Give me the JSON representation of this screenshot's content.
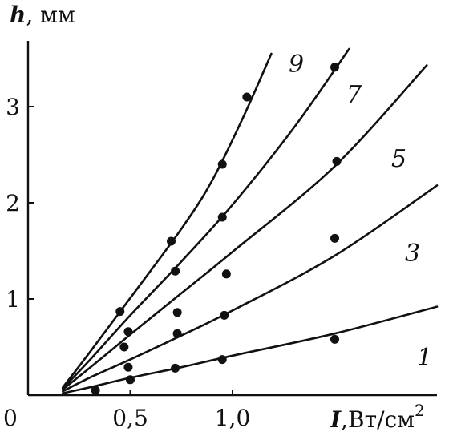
{
  "chart_data": {
    "type": "line",
    "title": "",
    "xlabel": {
      "var": "I",
      "unit": ",Вт/см",
      "sup": "2"
    },
    "ylabel": {
      "var": "h",
      "unit": ", мм"
    },
    "origin_label": "0",
    "xlim": [
      0,
      2.0
    ],
    "ylim": [
      0,
      3.6
    ],
    "x_ticks": [
      {
        "value": 0.5,
        "label": "0,5"
      },
      {
        "value": 1.0,
        "label": "1,0"
      }
    ],
    "y_ticks": [
      {
        "value": 1,
        "label": "1"
      },
      {
        "value": 2,
        "label": "2"
      },
      {
        "value": 3,
        "label": "3"
      }
    ],
    "grid": false,
    "legend": "none",
    "series": [
      {
        "label": "1",
        "curve": [
          [
            0.17,
            0.02
          ],
          [
            0.3,
            0.08
          ],
          [
            0.5,
            0.18
          ],
          [
            0.75,
            0.29
          ],
          [
            1.0,
            0.41
          ],
          [
            1.5,
            0.64
          ],
          [
            2.0,
            0.92
          ]
        ],
        "points": [
          [
            0.33,
            0.05
          ],
          [
            0.5,
            0.16
          ],
          [
            0.72,
            0.28
          ],
          [
            0.95,
            0.37
          ],
          [
            1.5,
            0.58
          ]
        ]
      },
      {
        "label": "3",
        "curve": [
          [
            0.17,
            0.04
          ],
          [
            0.3,
            0.18
          ],
          [
            0.5,
            0.37
          ],
          [
            0.75,
            0.62
          ],
          [
            1.0,
            0.88
          ],
          [
            1.5,
            1.45
          ],
          [
            2.0,
            2.18
          ]
        ],
        "points": [
          [
            0.49,
            0.29
          ],
          [
            0.73,
            0.64
          ],
          [
            0.96,
            0.83
          ],
          [
            1.5,
            1.63
          ]
        ]
      },
      {
        "label": "5",
        "curve": [
          [
            0.17,
            0.06
          ],
          [
            0.3,
            0.28
          ],
          [
            0.5,
            0.63
          ],
          [
            0.75,
            1.06
          ],
          [
            1.0,
            1.49
          ],
          [
            1.5,
            2.38
          ],
          [
            1.95,
            3.43
          ]
        ],
        "points": [
          [
            0.47,
            0.5
          ],
          [
            0.73,
            0.86
          ],
          [
            0.97,
            1.26
          ],
          [
            1.51,
            2.43
          ]
        ]
      },
      {
        "label": "7",
        "curve": [
          [
            0.17,
            0.07
          ],
          [
            0.3,
            0.36
          ],
          [
            0.5,
            0.83
          ],
          [
            0.75,
            1.39
          ],
          [
            1.0,
            1.98
          ],
          [
            1.3,
            2.78
          ],
          [
            1.57,
            3.6
          ]
        ],
        "points": [
          [
            0.49,
            0.66
          ],
          [
            0.72,
            1.29
          ],
          [
            0.95,
            1.85
          ],
          [
            1.5,
            3.41
          ]
        ]
      },
      {
        "label": "9",
        "curve": [
          [
            0.17,
            0.08
          ],
          [
            0.3,
            0.44
          ],
          [
            0.5,
            1.01
          ],
          [
            0.75,
            1.73
          ],
          [
            0.9,
            2.23
          ],
          [
            1.05,
            2.88
          ],
          [
            1.19,
            3.55
          ]
        ],
        "points": [
          [
            0.45,
            0.87
          ],
          [
            0.7,
            1.6
          ],
          [
            0.95,
            2.4
          ],
          [
            1.07,
            3.1
          ]
        ]
      }
    ]
  }
}
